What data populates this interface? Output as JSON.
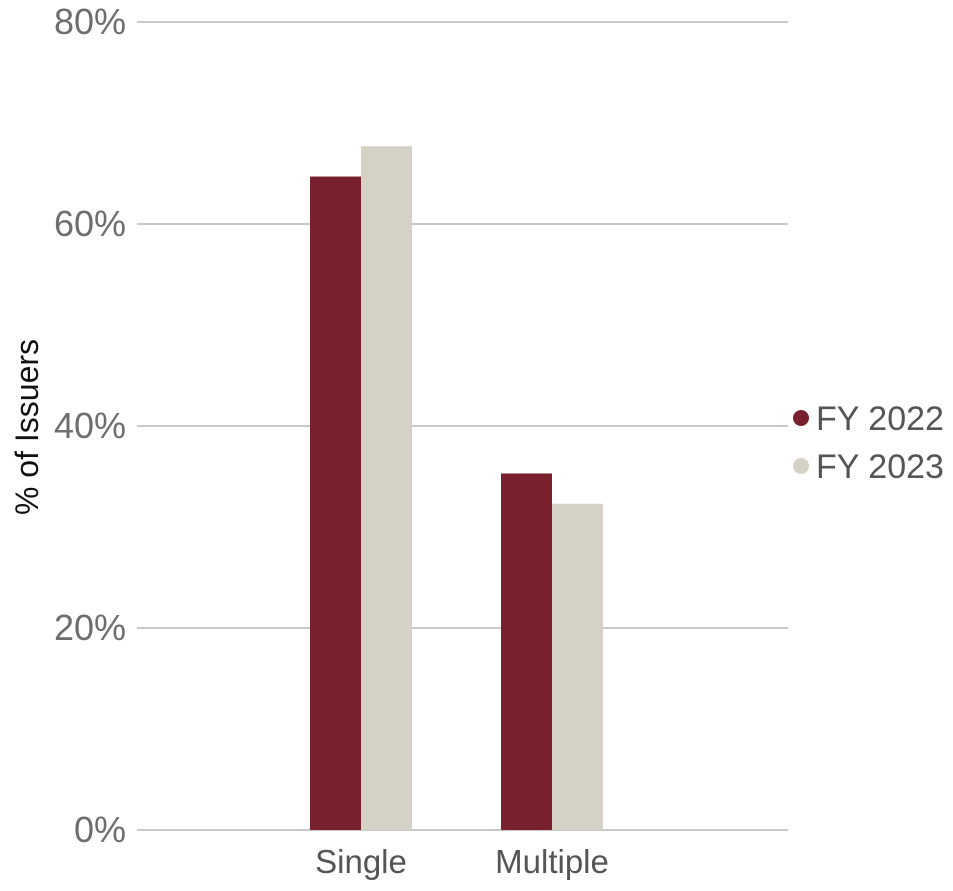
{
  "chart_data": {
    "type": "bar",
    "categories": [
      "Single",
      "Multiple"
    ],
    "series": [
      {
        "name": "FY 2022",
        "values": [
          64.7,
          35.3
        ],
        "color": "#78202e"
      },
      {
        "name": "FY 2023",
        "values": [
          67.7,
          32.3
        ],
        "color": "#d6d1c5"
      }
    ],
    "title": "",
    "xlabel": "",
    "ylabel": "% of Issuers",
    "ylim": [
      0,
      80
    ],
    "yticks": [
      0,
      20,
      40,
      60,
      80
    ],
    "ytick_labels": [
      "0%",
      "20%",
      "40%",
      "60%",
      "80%"
    ],
    "grid": true,
    "legend_position": "right"
  }
}
